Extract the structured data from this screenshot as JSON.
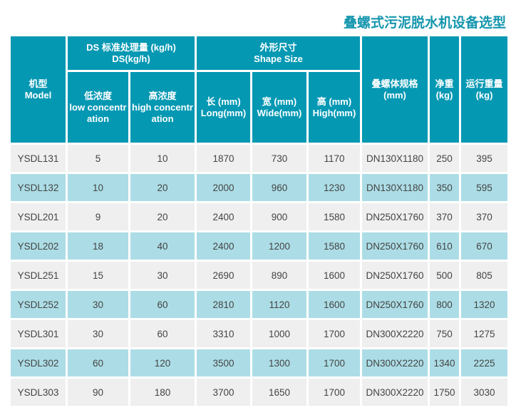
{
  "title": "叠螺式污泥脱水机设备选型",
  "colors": {
    "header": "#0598b3",
    "row_odd": "#efefef",
    "row_even": "#acdde6",
    "title": "#1596ae"
  },
  "header": {
    "model": [
      "机型",
      "Model"
    ],
    "ds_group": [
      "DS 标准处理量 (kg/h)",
      "DS(kg/h)"
    ],
    "low": [
      "低浓度",
      "low concentr",
      "ation"
    ],
    "high": [
      "高浓度",
      "high concentr",
      "ation"
    ],
    "shape_group": [
      "外形尺寸",
      "Shape Size"
    ],
    "long": [
      "长 (mm)",
      "Long(mm)"
    ],
    "wide": [
      "宽 (mm)",
      "Wide(mm)"
    ],
    "height": [
      "高 (mm)",
      "High(mm)"
    ],
    "spec": [
      "叠螺体规格",
      "(mm)"
    ],
    "net": [
      "净重",
      "(kg)"
    ],
    "running": [
      "运行重量",
      "(kg)"
    ]
  },
  "rows": [
    [
      "YSDL131",
      "5",
      "10",
      "1870",
      "730",
      "1170",
      "DN130X1180",
      "250",
      "395"
    ],
    [
      "YSDL132",
      "10",
      "20",
      "2000",
      "960",
      "1230",
      "DN130X1180",
      "350",
      "595"
    ],
    [
      "YSDL201",
      "9",
      "20",
      "2400",
      "900",
      "1580",
      "DN250X1760",
      "370",
      "370"
    ],
    [
      "YSDL202",
      "18",
      "40",
      "2400",
      "1200",
      "1580",
      "DN250X1760",
      "610",
      "670"
    ],
    [
      "YSDL251",
      "15",
      "30",
      "2690",
      "890",
      "1600",
      "DN250X1760",
      "500",
      "805"
    ],
    [
      "YSDL252",
      "30",
      "60",
      "2810",
      "1120",
      "1600",
      "DN250X1760",
      "800",
      "1320"
    ],
    [
      "YSDL301",
      "30",
      "60",
      "3310",
      "1000",
      "1700",
      "DN300X2220",
      "750",
      "1275"
    ],
    [
      "YSDL302",
      "60",
      "120",
      "3500",
      "1300",
      "1700",
      "DN300X2220",
      "1340",
      "2225"
    ],
    [
      "YSDL303",
      "90",
      "180",
      "3700",
      "1650",
      "1700",
      "DN300X2220",
      "1750",
      "3030"
    ]
  ]
}
